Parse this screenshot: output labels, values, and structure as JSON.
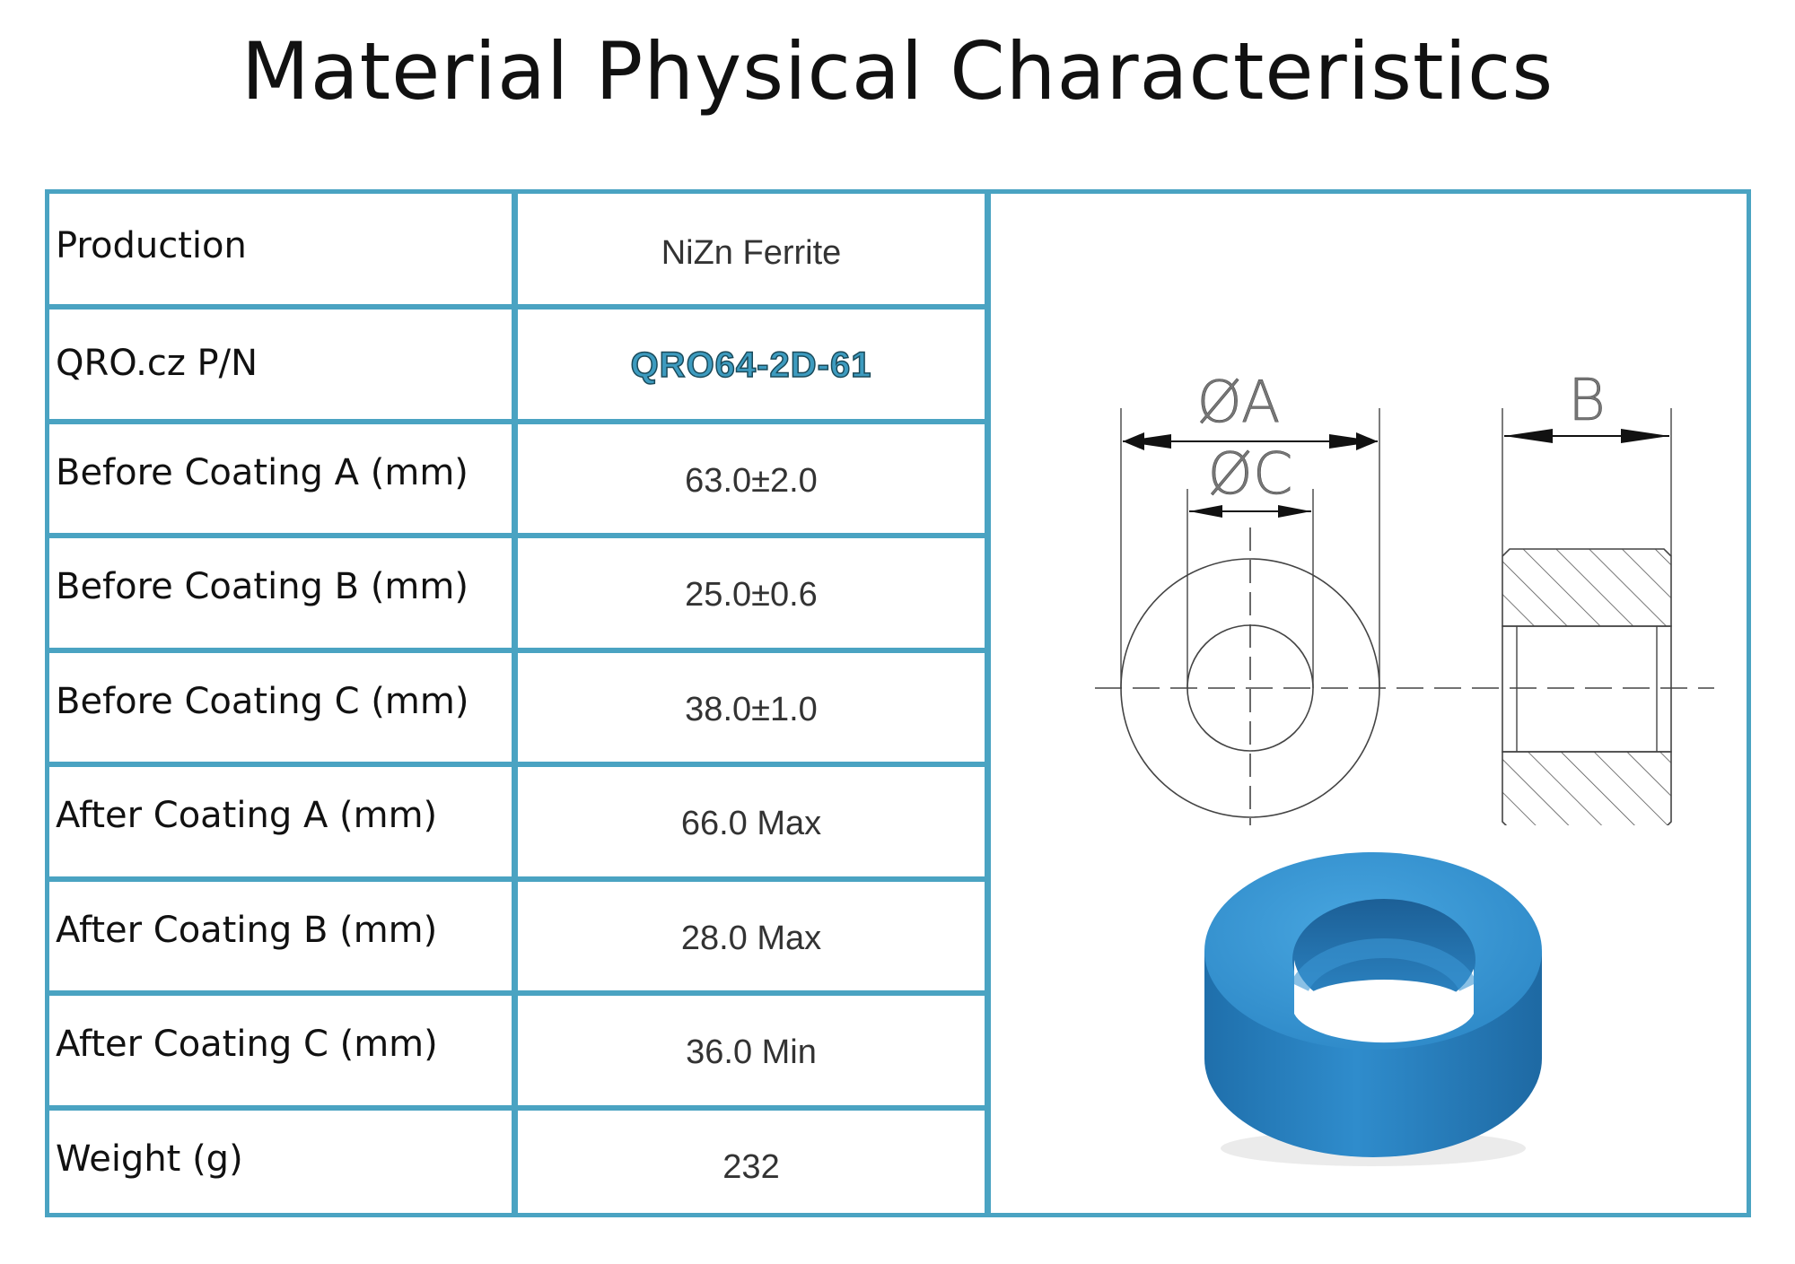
{
  "title": "Material Physical Characteristics",
  "rows": [
    {
      "label": "Production",
      "value": "NiZn Ferrite"
    },
    {
      "label": "QRO.cz P/N",
      "value": "QRO64-2D-61"
    },
    {
      "label": "Before Coating  A (mm)",
      "value": "63.0±2.0"
    },
    {
      "label": "Before Coating B (mm)",
      "value": "25.0±0.6"
    },
    {
      "label": "Before Coating C (mm)",
      "value": "38.0±1.0"
    },
    {
      "label": "After Coating A (mm)",
      "value": "66.0 Max"
    },
    {
      "label": "After Coating B (mm)",
      "value": "28.0 Max"
    },
    {
      "label": "After Coating C (mm)",
      "value": "36.0  Min"
    },
    {
      "label": "Weight (g)",
      "value": "232"
    }
  ],
  "drawing": {
    "dim_a": "ØA",
    "dim_b": "B",
    "dim_c": "ØC"
  },
  "colors": {
    "grid": "#4aa3c2",
    "toroid_blue": "#2f86c4"
  }
}
